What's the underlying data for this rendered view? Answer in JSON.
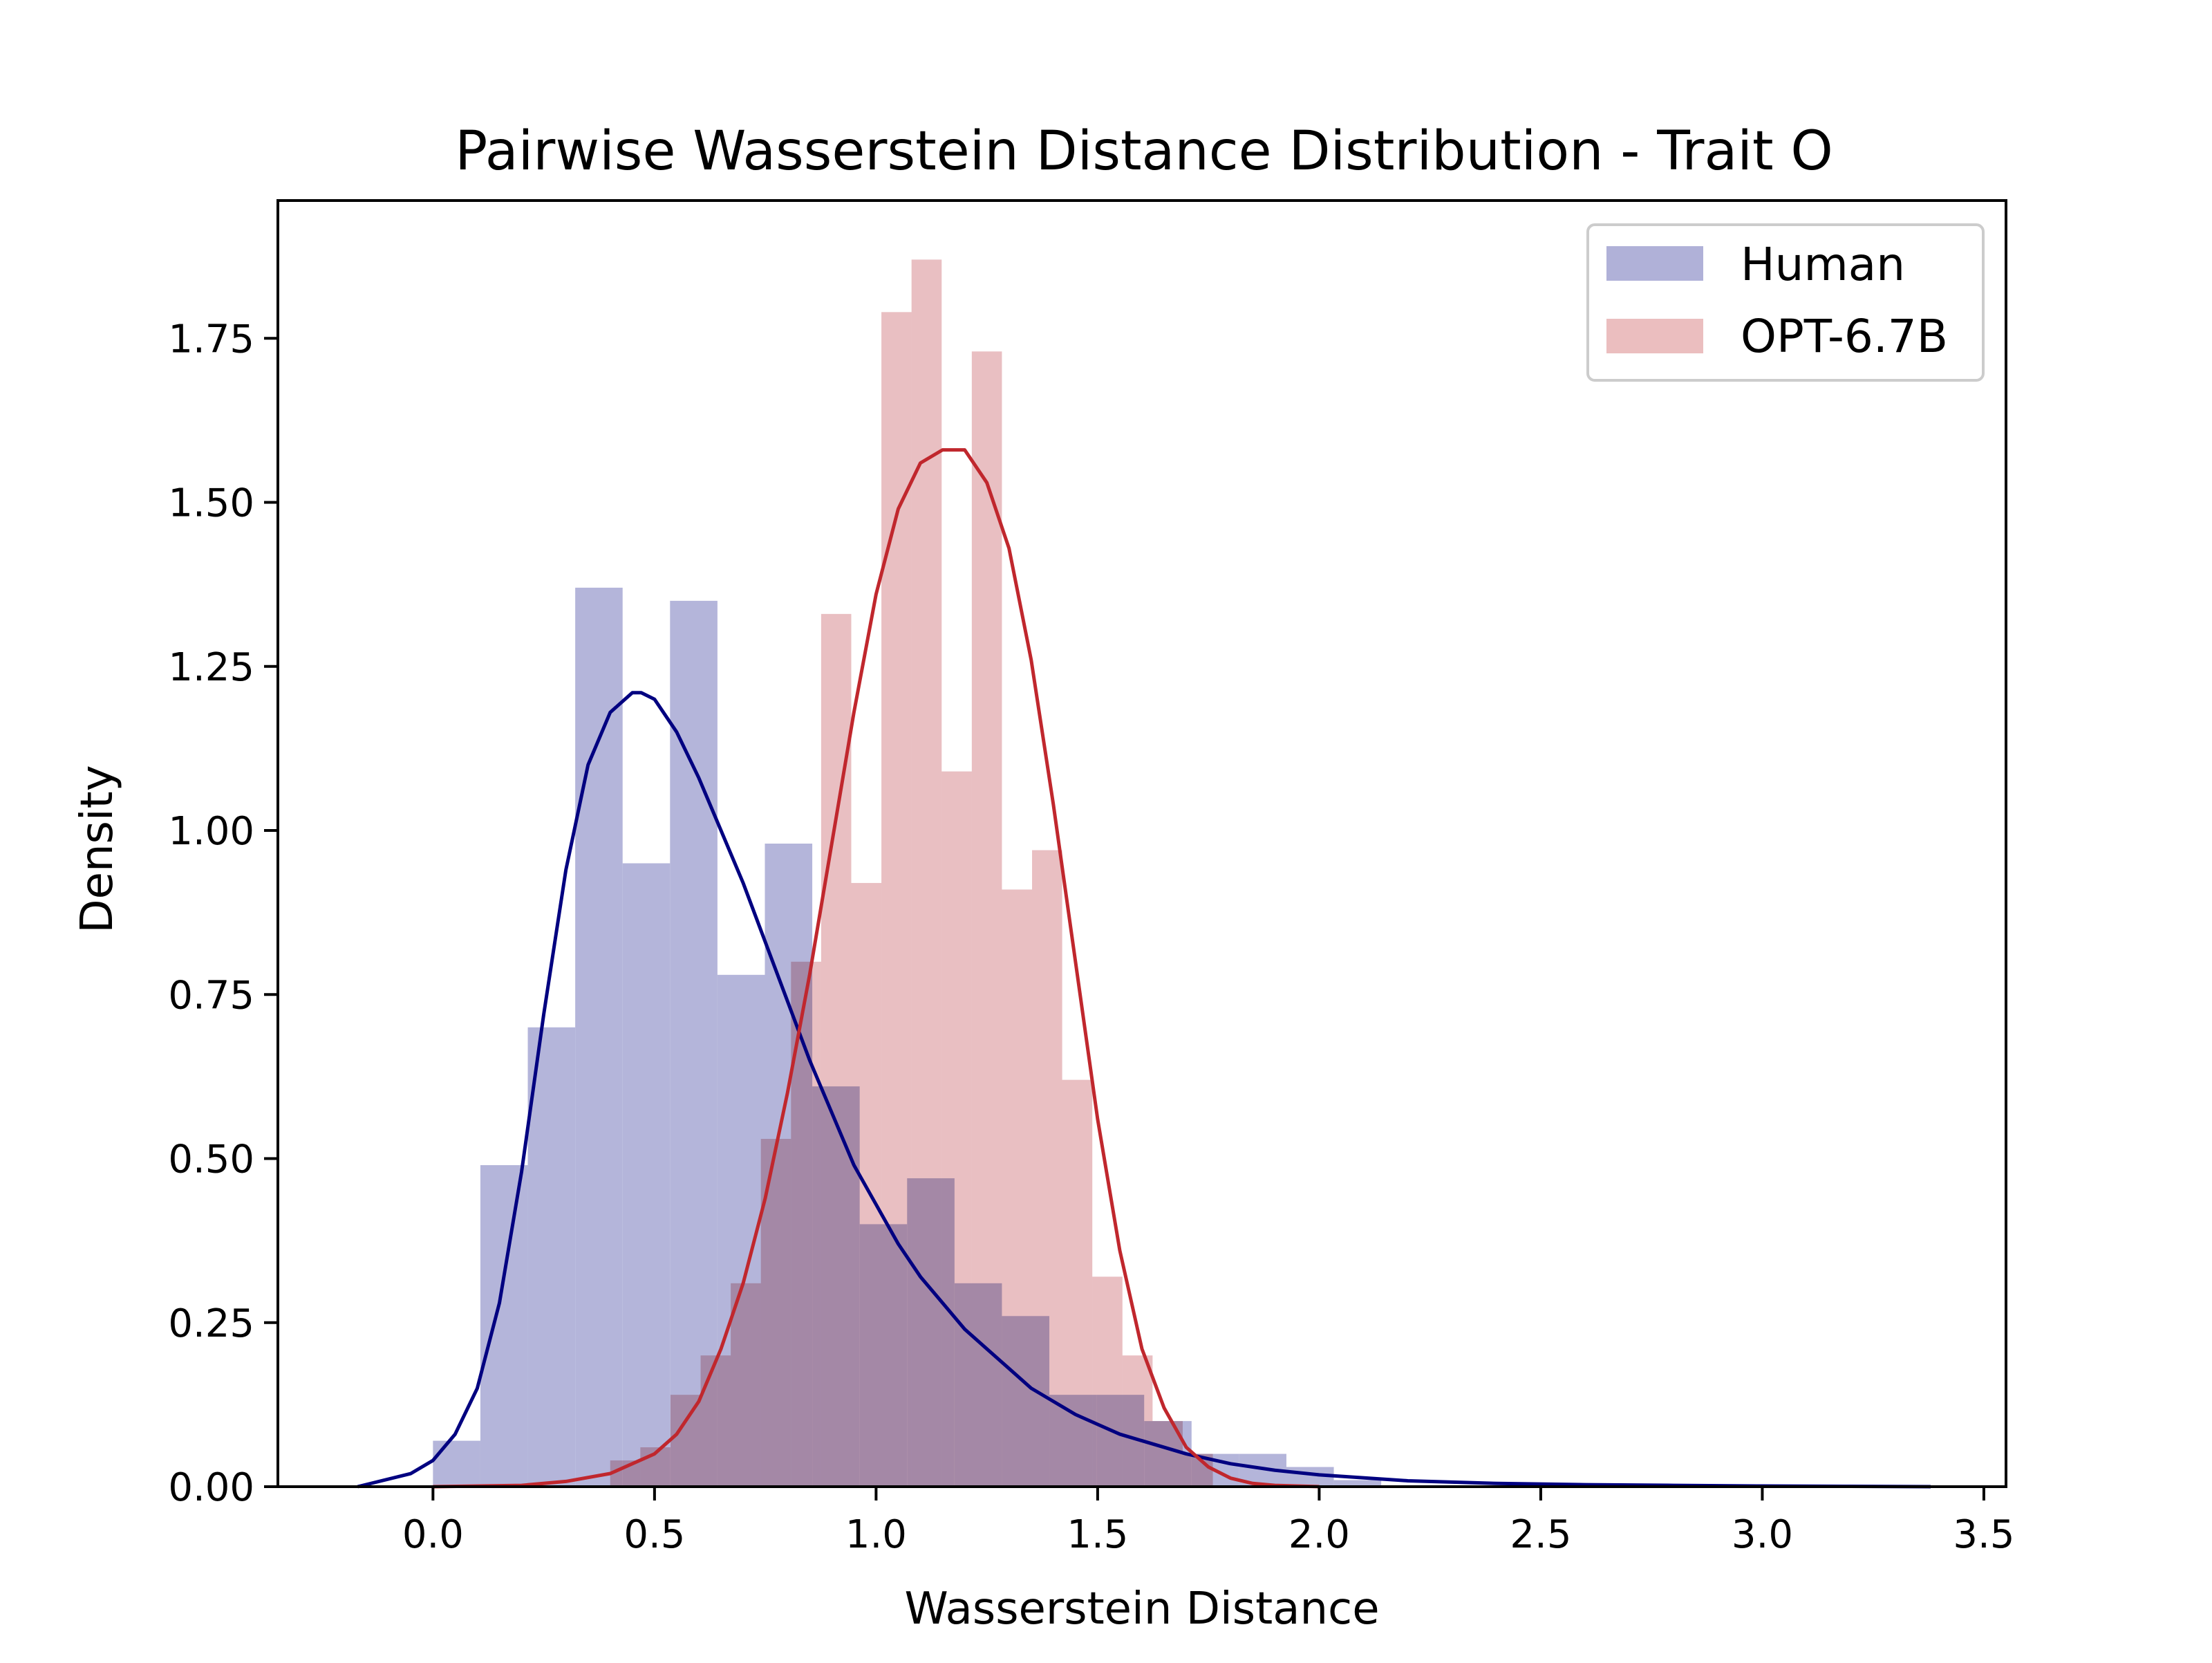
{
  "chart_data": {
    "type": "bar",
    "title": "Pairwise Wasserstein Distance Distribution - Trait O",
    "xlabel": "Wasserstein Distance",
    "ylabel": "Density",
    "xlim": [
      -0.35,
      3.55
    ],
    "ylim": [
      0,
      1.96
    ],
    "xticks": [
      "0.0",
      "0.5",
      "1.0",
      "1.5",
      "2.0",
      "2.5",
      "3.0",
      "3.5"
    ],
    "yticks": [
      "0.00",
      "0.25",
      "0.50",
      "0.75",
      "1.00",
      "1.25",
      "1.50",
      "1.75"
    ],
    "grid": false,
    "legend": {
      "placement": "top-right",
      "entries": [
        "Human",
        "OPT-6.7B"
      ]
    },
    "series": [
      {
        "name": "Human",
        "color": "#000080",
        "fill_color": "#b0b1d8",
        "bin_edges": [
          0.0,
          0.107,
          0.214,
          0.321,
          0.428,
          0.535,
          0.642,
          0.749,
          0.856,
          0.963,
          1.07,
          1.177,
          1.284,
          1.391,
          1.498,
          1.605,
          1.712,
          1.819,
          1.926,
          2.033,
          2.14
        ],
        "densities": [
          0.07,
          0.49,
          0.7,
          1.37,
          0.95,
          1.35,
          0.78,
          0.98,
          0.61,
          0.4,
          0.47,
          0.31,
          0.26,
          0.14,
          0.14,
          0.1,
          0.05,
          0.05,
          0.03,
          0.01
        ],
        "kde_x": [
          -0.17,
          -0.05,
          0.0,
          0.05,
          0.1,
          0.15,
          0.2,
          0.25,
          0.3,
          0.35,
          0.4,
          0.45,
          0.47,
          0.5,
          0.55,
          0.6,
          0.65,
          0.7,
          0.75,
          0.8,
          0.85,
          0.9,
          0.95,
          1.0,
          1.05,
          1.1,
          1.15,
          1.2,
          1.25,
          1.3,
          1.35,
          1.4,
          1.45,
          1.5,
          1.55,
          1.6,
          1.7,
          1.8,
          1.9,
          2.0,
          2.2,
          2.4,
          2.6,
          2.8,
          3.0,
          3.2,
          3.38
        ],
        "kde_y": [
          0.0,
          0.02,
          0.04,
          0.08,
          0.15,
          0.28,
          0.48,
          0.72,
          0.94,
          1.1,
          1.18,
          1.21,
          1.21,
          1.2,
          1.15,
          1.08,
          1.0,
          0.92,
          0.83,
          0.74,
          0.65,
          0.57,
          0.49,
          0.43,
          0.37,
          0.32,
          0.28,
          0.24,
          0.21,
          0.18,
          0.15,
          0.13,
          0.11,
          0.095,
          0.08,
          0.07,
          0.05,
          0.035,
          0.025,
          0.018,
          0.009,
          0.005,
          0.003,
          0.002,
          0.001,
          0.0005,
          0.0
        ]
      },
      {
        "name": "OPT-6.7B",
        "color": "#c0272d",
        "fill_color": "#ebbebf",
        "bin_edges": [
          0.4,
          0.468,
          0.536,
          0.604,
          0.672,
          0.74,
          0.808,
          0.876,
          0.944,
          1.012,
          1.08,
          1.148,
          1.216,
          1.284,
          1.352,
          1.42,
          1.488,
          1.556,
          1.624,
          1.692,
          1.76
        ],
        "densities": [
          0.04,
          0.06,
          0.14,
          0.2,
          0.31,
          0.53,
          0.8,
          1.33,
          0.92,
          1.79,
          1.87,
          1.09,
          1.73,
          0.91,
          0.97,
          0.62,
          0.32,
          0.2,
          0.1,
          0.05
        ],
        "kde_x": [
          0.0,
          0.2,
          0.3,
          0.4,
          0.5,
          0.55,
          0.6,
          0.65,
          0.7,
          0.75,
          0.8,
          0.85,
          0.9,
          0.95,
          1.0,
          1.05,
          1.1,
          1.15,
          1.2,
          1.25,
          1.3,
          1.35,
          1.4,
          1.45,
          1.5,
          1.55,
          1.6,
          1.65,
          1.7,
          1.75,
          1.8,
          1.85,
          1.9,
          2.0
        ],
        "kde_y": [
          0.0,
          0.002,
          0.008,
          0.02,
          0.05,
          0.08,
          0.13,
          0.21,
          0.31,
          0.44,
          0.6,
          0.78,
          0.98,
          1.18,
          1.36,
          1.49,
          1.56,
          1.58,
          1.58,
          1.53,
          1.43,
          1.26,
          1.04,
          0.8,
          0.56,
          0.36,
          0.21,
          0.12,
          0.06,
          0.03,
          0.013,
          0.005,
          0.002,
          0.0
        ]
      }
    ]
  }
}
